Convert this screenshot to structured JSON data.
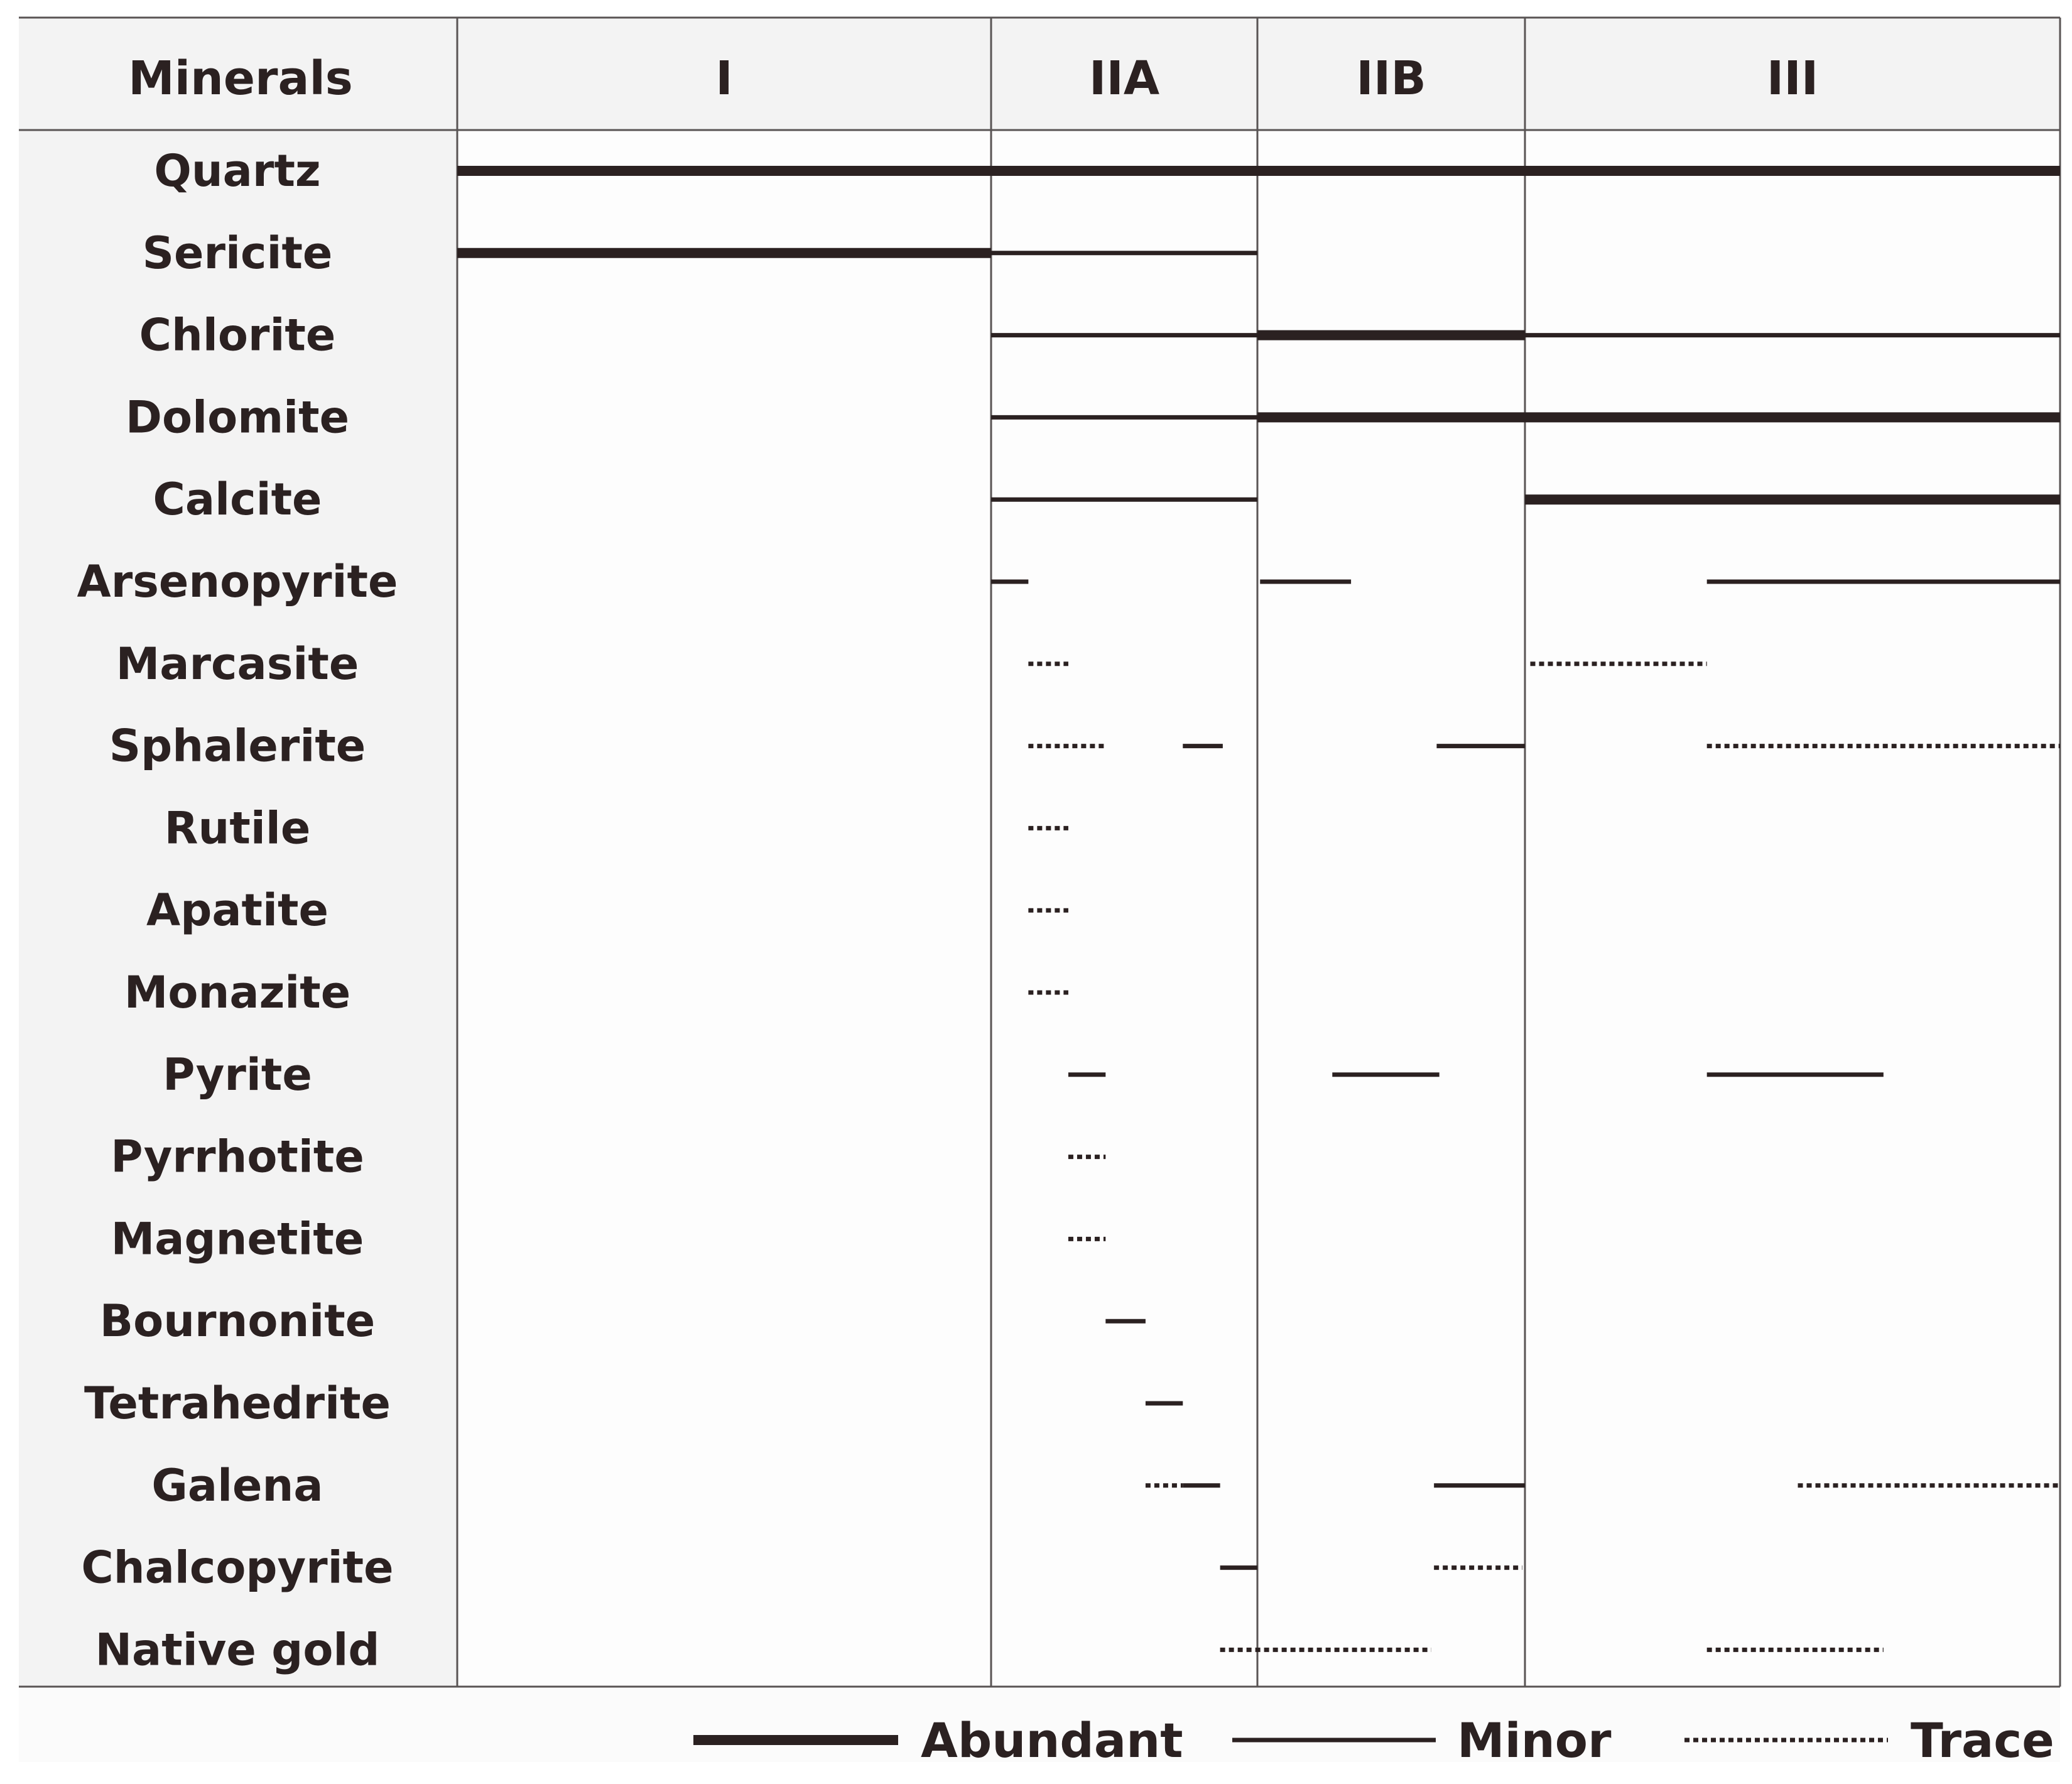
{
  "chart_data": {
    "type": "paragenetic-sequence",
    "header_label": "Minerals",
    "stages": [
      "I",
      "IIA",
      "IIB",
      "III"
    ],
    "colors": {
      "line": "#2b2121",
      "header_bg": "#f3f3f3",
      "grid": "#595454"
    },
    "legend": [
      {
        "style": "abundant",
        "label": "Abundant"
      },
      {
        "style": "minor",
        "label": "Minor"
      },
      {
        "style": "trace",
        "label": "Trace"
      }
    ],
    "minerals": [
      {
        "name": "Quartz",
        "segments": [
          {
            "from": 0,
            "to": 4,
            "style": "abundant"
          }
        ]
      },
      {
        "name": "Sericite",
        "segments": [
          {
            "from": 0,
            "to": 1,
            "style": "abundant"
          },
          {
            "from": 1,
            "to": 2,
            "style": "minor"
          }
        ]
      },
      {
        "name": "Chlorite",
        "segments": [
          {
            "from": 1,
            "to": 2,
            "style": "minor"
          },
          {
            "from": 2,
            "to": 3,
            "style": "abundant"
          },
          {
            "from": 3,
            "to": 4,
            "style": "minor"
          }
        ]
      },
      {
        "name": "Dolomite",
        "segments": [
          {
            "from": 1,
            "to": 2,
            "style": "minor"
          },
          {
            "from": 2,
            "to": 4,
            "style": "abundant"
          }
        ]
      },
      {
        "name": "Calcite",
        "segments": [
          {
            "from": 1,
            "to": 2,
            "style": "minor"
          },
          {
            "from": 3,
            "to": 4,
            "style": "abundant"
          }
        ]
      },
      {
        "name": "Arsenopyrite",
        "segments": [
          {
            "from": 1.0,
            "to": 1.14,
            "style": "minor"
          },
          {
            "from": 2.01,
            "to": 2.35,
            "style": "minor"
          },
          {
            "from": 3.34,
            "to": 4.0,
            "style": "minor"
          }
        ]
      },
      {
        "name": "Marcasite",
        "segments": [
          {
            "from": 1.14,
            "to": 1.29,
            "style": "trace"
          },
          {
            "from": 3.01,
            "to": 3.34,
            "style": "trace"
          }
        ]
      },
      {
        "name": "Sphalerite",
        "segments": [
          {
            "from": 1.14,
            "to": 1.43,
            "style": "trace"
          },
          {
            "from": 1.72,
            "to": 1.87,
            "style": "minor"
          },
          {
            "from": 2.67,
            "to": 3.0,
            "style": "minor"
          },
          {
            "from": 3.34,
            "to": 4.0,
            "style": "trace"
          }
        ]
      },
      {
        "name": "Rutile",
        "segments": [
          {
            "from": 1.14,
            "to": 1.29,
            "style": "trace"
          }
        ]
      },
      {
        "name": "Apatite",
        "segments": [
          {
            "from": 1.14,
            "to": 1.29,
            "style": "trace"
          }
        ]
      },
      {
        "name": "Monazite",
        "segments": [
          {
            "from": 1.14,
            "to": 1.29,
            "style": "trace"
          }
        ]
      },
      {
        "name": "Pyrite",
        "segments": [
          {
            "from": 1.29,
            "to": 1.43,
            "style": "minor"
          },
          {
            "from": 2.28,
            "to": 2.68,
            "style": "minor"
          },
          {
            "from": 3.34,
            "to": 3.67,
            "style": "minor"
          }
        ]
      },
      {
        "name": "Pyrrhotite",
        "segments": [
          {
            "from": 1.29,
            "to": 1.43,
            "style": "trace"
          }
        ]
      },
      {
        "name": "Magnetite",
        "segments": [
          {
            "from": 1.29,
            "to": 1.43,
            "style": "trace"
          }
        ]
      },
      {
        "name": "Bournonite",
        "segments": [
          {
            "from": 1.43,
            "to": 1.58,
            "style": "minor"
          }
        ]
      },
      {
        "name": "Tetrahedrite",
        "segments": [
          {
            "from": 1.58,
            "to": 1.72,
            "style": "minor"
          }
        ]
      },
      {
        "name": "Galena",
        "segments": [
          {
            "from": 1.58,
            "to": 1.72,
            "style": "trace"
          },
          {
            "from": 1.72,
            "to": 1.86,
            "style": "minor"
          },
          {
            "from": 2.66,
            "to": 3.0,
            "style": "minor"
          },
          {
            "from": 3.51,
            "to": 4.0,
            "style": "trace"
          }
        ]
      },
      {
        "name": "Chalcopyrite",
        "segments": [
          {
            "from": 1.86,
            "to": 2.0,
            "style": "minor"
          },
          {
            "from": 2.66,
            "to": 2.99,
            "style": "trace"
          }
        ]
      },
      {
        "name": "Native gold",
        "segments": [
          {
            "from": 1.86,
            "to": 2.65,
            "style": "trace"
          },
          {
            "from": 3.34,
            "to": 3.67,
            "style": "trace"
          }
        ]
      }
    ]
  }
}
